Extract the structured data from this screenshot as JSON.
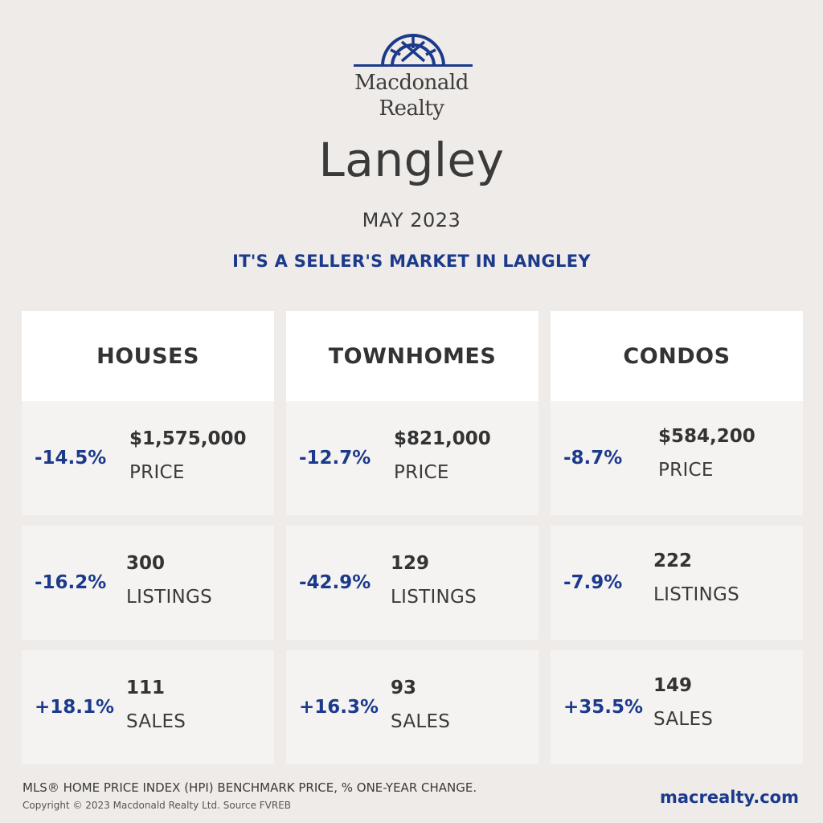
{
  "brand": {
    "line1": "Macdonald",
    "line2": "Realty",
    "logo_icon": "compass-arch-icon",
    "color": "#1b3a8c"
  },
  "header": {
    "city": "Langley",
    "period": "MAY 2023",
    "headline": "IT'S A SELLER'S MARKET IN LANGLEY"
  },
  "columns": [
    {
      "title": "HOUSES",
      "metrics": [
        {
          "change": "-14.5%",
          "value": "$1,575,000",
          "label": "PRICE"
        },
        {
          "change": "-16.2%",
          "value": "300",
          "label": "LISTINGS"
        },
        {
          "change": "+18.1%",
          "value": "111",
          "label": "SALES"
        }
      ]
    },
    {
      "title": "TOWNHOMES",
      "metrics": [
        {
          "change": "-12.7%",
          "value": "$821,000",
          "label": "PRICE"
        },
        {
          "change": "-42.9%",
          "value": "129",
          "label": "LISTINGS"
        },
        {
          "change": "+16.3%",
          "value": "93",
          "label": "SALES"
        }
      ]
    },
    {
      "title": "CONDOS",
      "metrics": [
        {
          "change": "-8.7%",
          "value": "$584,200",
          "label": "PRICE"
        },
        {
          "change": "-7.9%",
          "value": "222",
          "label": "LISTINGS"
        },
        {
          "change": "+35.5%",
          "value": "149",
          "label": "SALES"
        }
      ]
    }
  ],
  "footer": {
    "note": "MLS® HOME PRICE INDEX (HPI) BENCHMARK PRICE, % ONE-YEAR CHANGE.",
    "copyright": "Copyright © 2023 Macdonald Realty Ltd. Source FVREB",
    "website": "macrealty.com"
  }
}
